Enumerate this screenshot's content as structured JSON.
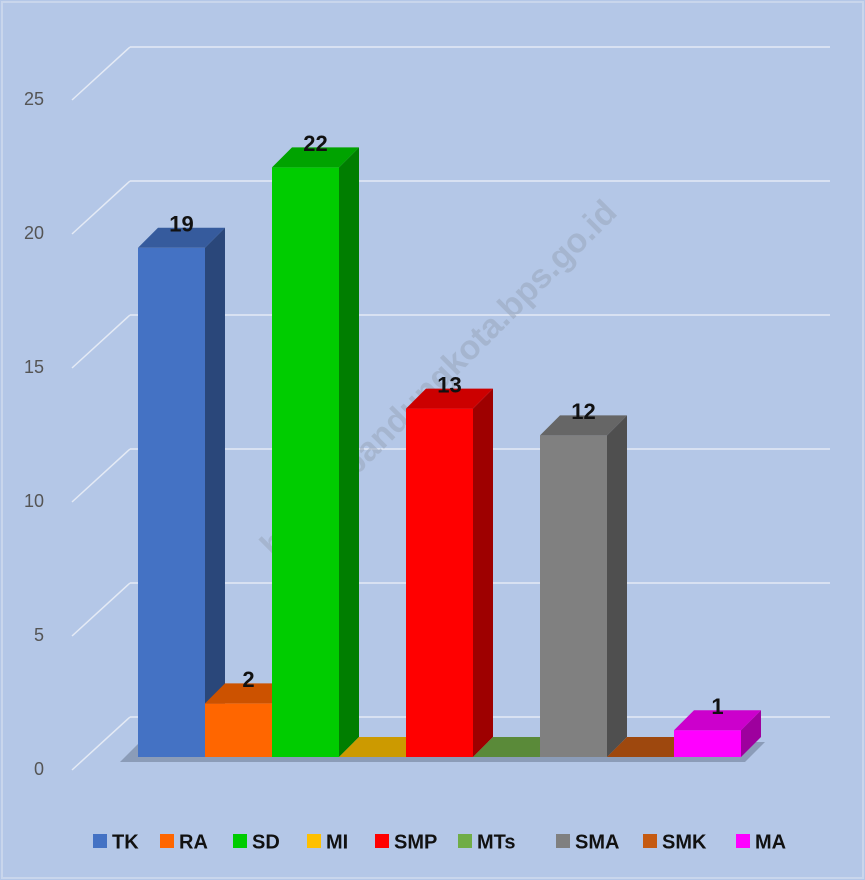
{
  "chart_data": {
    "type": "bar3d",
    "watermark": "https://bandungkota.bps.go.id",
    "series": [
      {
        "name": "TK",
        "color": "#4472c4",
        "values": [
          19
        ]
      },
      {
        "name": "RA",
        "color": "#ff6600",
        "values": [
          2
        ]
      },
      {
        "name": "SD",
        "color": "#00cc00",
        "values": [
          22
        ]
      },
      {
        "name": "MI",
        "color": "#ffc000",
        "values": [
          0
        ]
      },
      {
        "name": "SMP",
        "color": "#ff0000",
        "values": [
          13
        ]
      },
      {
        "name": "MTs",
        "color": "#70ad47",
        "values": [
          0
        ]
      },
      {
        "name": "SMA",
        "color": "#808080",
        "values": [
          12
        ]
      },
      {
        "name": "SMK",
        "color": "#c55a11",
        "values": [
          0
        ]
      },
      {
        "name": "MA",
        "color": "#ff00ff",
        "values": [
          1
        ]
      }
    ],
    "ylim": [
      0,
      25
    ],
    "yticks": [
      0,
      5,
      10,
      15,
      20,
      25
    ],
    "grid": true,
    "legend": "bottom"
  }
}
